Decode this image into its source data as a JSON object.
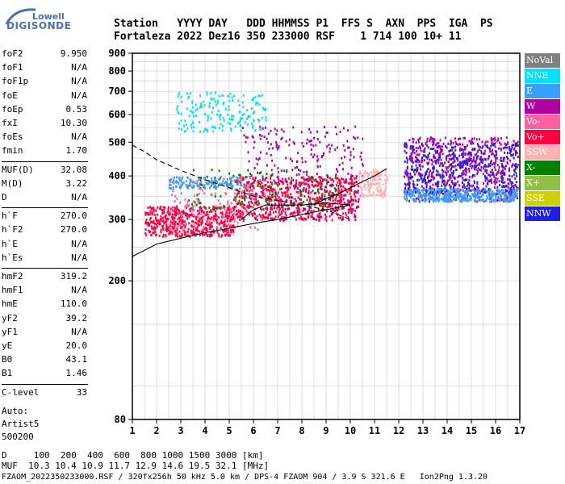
{
  "logo": {
    "top": "Lowell",
    "main": "DIGISONDE"
  },
  "header": {
    "line1": "Station   YYYY DAY   DDD HHMMSS P1  FFS S  AXN  PPS  IGA  PS",
    "line2": "Fortaleza 2022 Dez16 350 233000 RSF    1 714 100 10+ 11"
  },
  "params": {
    "group1": [
      {
        "k": "foF2",
        "v": "9.950"
      },
      {
        "k": "foF1",
        "v": "N/A"
      },
      {
        "k": "foF1p",
        "v": "N/A"
      },
      {
        "k": "foE",
        "v": "N/A"
      },
      {
        "k": "foEp",
        "v": "0.53"
      },
      {
        "k": "fxI",
        "v": "10.30"
      },
      {
        "k": "foEs",
        "v": "N/A"
      },
      {
        "k": "fmin",
        "v": "1.70"
      }
    ],
    "group2": [
      {
        "k": "MUF(D)",
        "v": "32.08"
      },
      {
        "k": "M(D)",
        "v": "3.22"
      },
      {
        "k": "D",
        "v": "N/A"
      }
    ],
    "group3": [
      {
        "k": "h`F",
        "v": "270.0"
      },
      {
        "k": "h`F2",
        "v": "270.0"
      },
      {
        "k": "h`E",
        "v": "N/A"
      },
      {
        "k": "h`Es",
        "v": "N/A"
      }
    ],
    "group4": [
      {
        "k": "hmF2",
        "v": "319.2"
      },
      {
        "k": "hmF1",
        "v": "N/A"
      },
      {
        "k": "hmE",
        "v": "110.0"
      },
      {
        "k": "yF2",
        "v": "39.2"
      },
      {
        "k": "yF1",
        "v": "N/A"
      },
      {
        "k": "yE",
        "v": "20.0"
      },
      {
        "k": "B0",
        "v": "43.1"
      },
      {
        "k": "B1",
        "v": "1.46"
      }
    ],
    "group5": [
      {
        "k": "C-level",
        "v": "33"
      }
    ],
    "auto_label": "Auto:",
    "artist": "Artist5",
    "artist_ver": "500200"
  },
  "legend": [
    {
      "label": "NoVal",
      "color": "#808080",
      "text": "#ffffff"
    },
    {
      "label": "NNE",
      "color": "#00e0ff",
      "text": "#ffffff"
    },
    {
      "label": "E",
      "color": "#3aa0ff",
      "text": "#ffffff"
    },
    {
      "label": "W",
      "color": "#b000a0",
      "text": "#ffffff"
    },
    {
      "label": "Vo-",
      "color": "#ff60a0",
      "text": "#ffffff"
    },
    {
      "label": "Vo+",
      "color": "#ff0040",
      "text": "#ffffff"
    },
    {
      "label": "SSW",
      "color": "#ffb0b0",
      "text": "#ffffff"
    },
    {
      "label": "X-",
      "color": "#008000",
      "text": "#ffffff"
    },
    {
      "label": "X+",
      "color": "#90c040",
      "text": "#ffffff"
    },
    {
      "label": "SSE",
      "color": "#d0d000",
      "text": "#ffffff"
    },
    {
      "label": "NNW",
      "color": "#2020e0",
      "text": "#ffffff"
    }
  ],
  "footer": {
    "line1": "D     100  200  400  600  800 1000 1500 3000 [km]",
    "line2": "MUF  10.3 10.4 10.9 11.7 12.9 14.6 19.5 32.1 [MHz]",
    "line3": "FZAOM_2022350233000.RSF / 320fx256h 50 kHz 5.0 km / DPS-4 FZAOM 904 / 3.9 S 321.6 E   Ion2Png 1.3.20"
  },
  "chart_data": {
    "type": "scatter",
    "xlim": [
      1,
      17
    ],
    "ylim": [
      80,
      900
    ],
    "x_ticks": [
      "1",
      "2",
      "3",
      "4",
      "5",
      "6",
      "7",
      "8",
      "9",
      "10",
      "11",
      "12",
      "13",
      "14",
      "15",
      "16",
      "17"
    ],
    "y_ticks": [
      "80",
      "200",
      "300",
      "400",
      "500",
      "600",
      "700",
      "800",
      "900"
    ],
    "y_scale": "log",
    "grid": true,
    "regions": [
      {
        "color_key": "Vo+",
        "x": [
          1.5,
          5.2
        ],
        "y": [
          270,
          330
        ],
        "n": 500
      },
      {
        "color_key": "Vo+",
        "x": [
          5.2,
          10.3
        ],
        "y": [
          300,
          400
        ],
        "n": 650
      },
      {
        "color_key": "W",
        "x": [
          5.5,
          10.5
        ],
        "y": [
          300,
          560
        ],
        "n": 300
      },
      {
        "color_key": "W",
        "x": [
          12.2,
          16.9
        ],
        "y": [
          340,
          520
        ],
        "n": 650
      },
      {
        "color_key": "E",
        "x": [
          12.2,
          16.9
        ],
        "y": [
          340,
          370
        ],
        "n": 450
      },
      {
        "color_key": "NNW",
        "x": [
          12.2,
          16.9
        ],
        "y": [
          360,
          500
        ],
        "n": 350
      },
      {
        "color_key": "NNE",
        "x": [
          2.8,
          6.5
        ],
        "y": [
          540,
          700
        ],
        "n": 180
      },
      {
        "color_key": "X-",
        "x": [
          3.2,
          9.5
        ],
        "y": [
          320,
          420
        ],
        "n": 140
      },
      {
        "color_key": "SSW",
        "x": [
          10.3,
          11.5
        ],
        "y": [
          350,
          420
        ],
        "n": 120
      },
      {
        "color_key": "Vo-",
        "x": [
          2.5,
          6.5
        ],
        "y": [
          280,
          400
        ],
        "n": 150
      },
      {
        "color_key": "E",
        "x": [
          2.5,
          5.5
        ],
        "y": [
          370,
          400
        ],
        "n": 120
      }
    ],
    "curves": [
      {
        "style": "solid",
        "x": [
          1,
          2,
          3,
          4,
          5,
          6,
          7,
          8,
          9,
          10
        ],
        "y": [
          235,
          255,
          265,
          275,
          283,
          292,
          300,
          310,
          320,
          330
        ]
      },
      {
        "style": "solid",
        "x": [
          5.5,
          6,
          6.5,
          7,
          8,
          9,
          10
        ],
        "y": [
          300,
          320,
          330,
          330,
          330,
          335,
          330
        ]
      },
      {
        "style": "dashed",
        "x": [
          1,
          1.5,
          2,
          3,
          4,
          5,
          6,
          7,
          8,
          9,
          10
        ],
        "y": [
          490,
          470,
          445,
          415,
          390,
          370,
          350,
          340,
          330,
          320,
          300
        ]
      },
      {
        "style": "solid",
        "x": [
          8.5,
          9,
          9.5,
          10,
          10.5,
          11,
          11.5
        ],
        "y": [
          330,
          345,
          355,
          370,
          385,
          400,
          420
        ]
      }
    ]
  }
}
